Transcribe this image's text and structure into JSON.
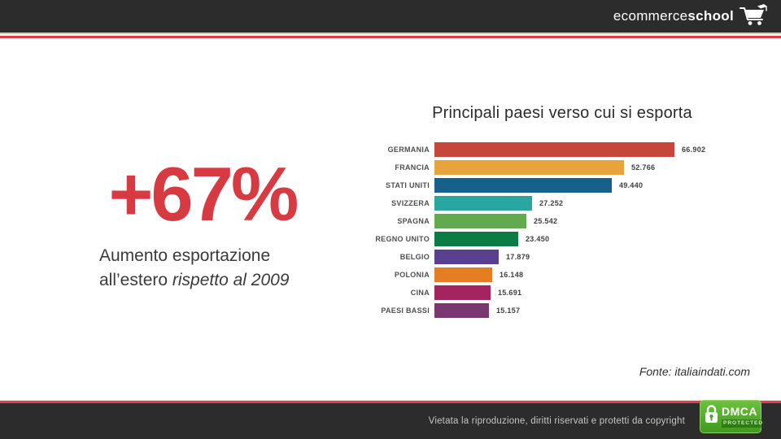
{
  "header": {
    "logo_light": "ecommerce",
    "logo_bold": "school"
  },
  "hero": {
    "percent": "+67%",
    "caption_line1": "Aumento esportazione",
    "caption_line2_regular": "all’estero ",
    "caption_line2_italic": "rispetto al 2009"
  },
  "chart_data": {
    "type": "bar",
    "orientation": "horizontal",
    "title": "Principali paesi verso cui si esporta",
    "categories": [
      "GERMANIA",
      "FRANCIA",
      "STATI UNITI",
      "SVIZZERA",
      "SPAGNA",
      "REGNO UNITO",
      "BELGIO",
      "POLONIA",
      "CINA",
      "PAESI BASSI"
    ],
    "values": [
      66902,
      52766,
      49440,
      27252,
      25542,
      23450,
      17879,
      16148,
      15691,
      15157
    ],
    "value_labels": [
      "66.902",
      "52.766",
      "49.440",
      "27.252",
      "25.542",
      "23.450",
      "17.879",
      "16.148",
      "15.691",
      "15.157"
    ],
    "bar_colors": [
      "#c6473a",
      "#e7a33c",
      "#16618c",
      "#2aa6a0",
      "#61aa50",
      "#0b7c43",
      "#5a4190",
      "#e57e21",
      "#a3245e",
      "#79386f"
    ],
    "xlabel": "",
    "ylabel": "",
    "xlim": [
      0,
      70000
    ],
    "grid": false,
    "legend": false
  },
  "source": {
    "label": "Fonte: italiaindati.com"
  },
  "footer": {
    "copyright": "Vietata la riproduzione, diritti riservati e protetti da copyright",
    "dmca_title": "DMCA",
    "dmca_subtitle": "PROTECTED"
  },
  "colors": {
    "accent_red": "#e23c46",
    "percent_red": "#d83a42",
    "header_bg": "#2d2c2c",
    "footer_bg": "#2d2c2c",
    "dmca_green": "#4aa226"
  }
}
